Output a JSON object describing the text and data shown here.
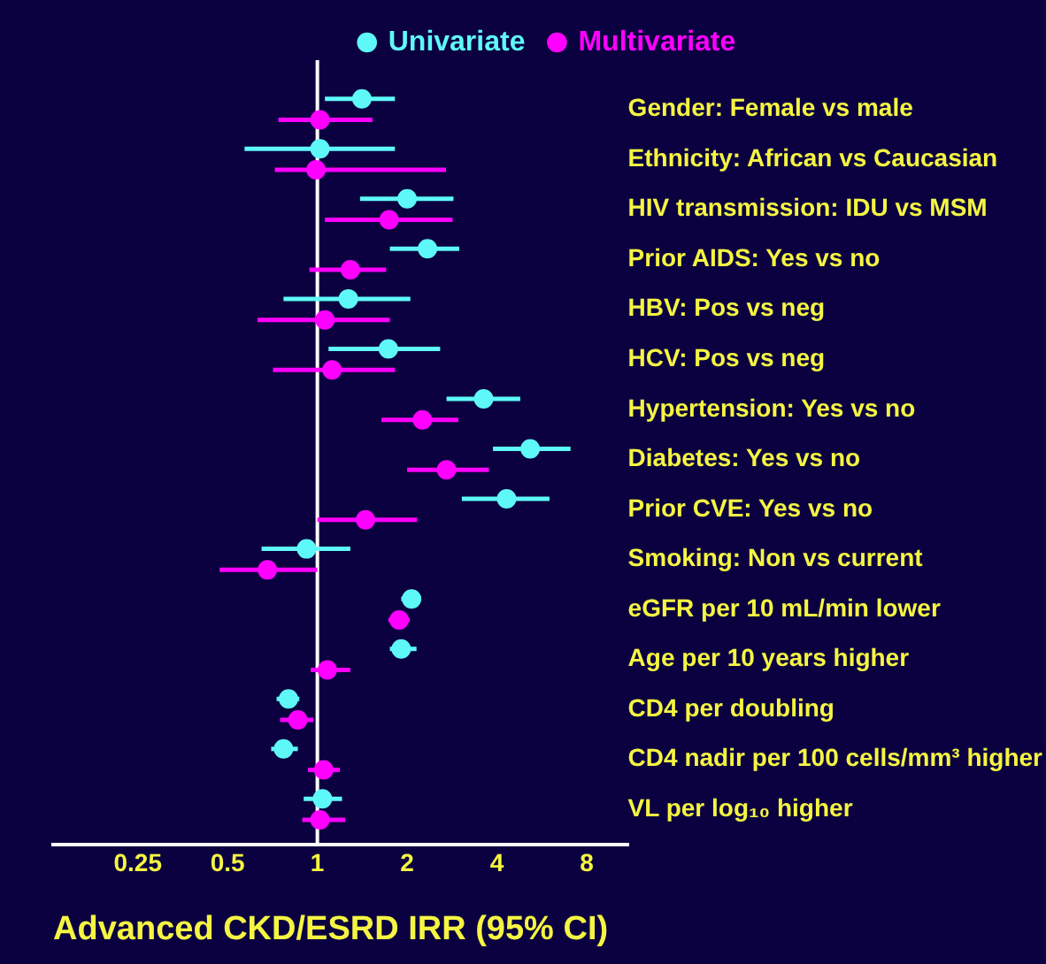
{
  "chart_data": {
    "type": "scatter",
    "orientation": "horizontal",
    "xlabel": "Advanced CKD/ESRD IRR (95% CI)",
    "categories": [
      "Gender: Female vs male",
      "Ethnicity: African vs Caucasian",
      "HIV transmission: IDU vs MSM",
      "Prior AIDS: Yes vs no",
      "HBV: Pos vs neg",
      "HCV: Pos vs neg",
      "Hypertension: Yes vs no",
      "Diabetes: Yes vs no",
      "Prior CVE: Yes vs no",
      "Smoking: Non vs current",
      "eGFR per 10 mL/min lower",
      "Age per 10 years higher",
      "CD4 per doubling",
      "CD4 nadir per 100 cells/mm³ higher",
      "VL per log₁₀ higher"
    ],
    "series": [
      {
        "name": "Univariate",
        "color": "#5ef8f8",
        "values": [
          1.41,
          1.02,
          2.0,
          2.34,
          1.27,
          1.73,
          3.61,
          5.17,
          4.31,
          0.92,
          2.07,
          1.91,
          0.8,
          0.77,
          1.04
        ],
        "errors": [
          [
            1.06,
            1.82
          ],
          [
            0.57,
            1.82
          ],
          [
            1.39,
            2.86
          ],
          [
            1.75,
            2.99
          ],
          [
            0.77,
            2.05
          ],
          [
            1.09,
            2.58
          ],
          [
            2.71,
            4.79
          ],
          [
            3.88,
            7.06
          ],
          [
            3.05,
            6.0
          ],
          [
            0.65,
            1.29
          ],
          [
            1.91,
            2.23
          ],
          [
            1.75,
            2.15
          ],
          [
            0.73,
            0.87
          ],
          [
            0.7,
            0.86
          ],
          [
            0.9,
            1.21
          ]
        ]
      },
      {
        "name": "Multivariate",
        "color": "#ff00ff",
        "values": [
          1.02,
          0.99,
          1.74,
          1.29,
          1.06,
          1.12,
          2.25,
          2.71,
          1.45,
          0.68,
          1.88,
          1.08,
          0.86,
          1.05,
          1.02
        ],
        "errors": [
          [
            0.74,
            1.53
          ],
          [
            0.72,
            2.7
          ],
          [
            1.06,
            2.84
          ],
          [
            0.94,
            1.7
          ],
          [
            0.63,
            1.75
          ],
          [
            0.71,
            1.82
          ],
          [
            1.64,
            2.97
          ],
          [
            2.0,
            3.76
          ],
          [
            1.0,
            2.16
          ],
          [
            0.47,
            1.0
          ],
          [
            1.73,
            2.04
          ],
          [
            0.95,
            1.29
          ],
          [
            0.75,
            0.97
          ],
          [
            0.93,
            1.19
          ],
          [
            0.89,
            1.24
          ]
        ]
      }
    ],
    "xlim": [
      0.13,
      11
    ],
    "xticks": [
      0.25,
      0.5,
      1,
      2,
      4,
      8
    ],
    "log": "x",
    "ref_lines": [
      {
        "axis": "x",
        "value": 1,
        "color": "#ffffff"
      }
    ],
    "legend": "top",
    "marker": "circle",
    "grid": false
  }
}
